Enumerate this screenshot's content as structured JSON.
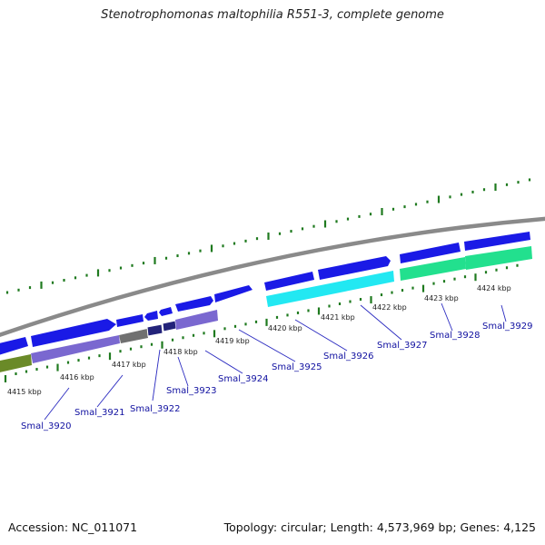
{
  "title": "Stenotrophomonas maltophilia R551-3, complete genome",
  "accession": "Accession: NC_011071",
  "topology": "Topology: circular; Length: 4,573,969 bp; Genes: 4,125",
  "colors": {
    "forward_cds": "#1a1ae6",
    "forward_cds_dark": "#000066",
    "reverse_cds": "#7a68d0",
    "reverse_cds_dark": "#23237a",
    "gray_feature": "#707070",
    "olive_feature": "#6a8a28",
    "cyan_feature": "#22e8f2",
    "teal_feature": "#22e08e",
    "backbone": "#8a8a8a",
    "tick": "#1f7a1f",
    "gene_label": "#1010a0",
    "leader_line": "#2a2ac0"
  },
  "scale_labels": [
    "4415 kbp",
    "4416 kbp",
    "4417 kbp",
    "4418 kbp",
    "4419 kbp",
    "4420 kbp",
    "4421 kbp",
    "4422 kbp",
    "4423 kbp",
    "4424 kbp"
  ],
  "gene_labels": [
    "Smal_3920",
    "Smal_3921",
    "Smal_3922",
    "Smal_3923",
    "Smal_3924",
    "Smal_3925",
    "Smal_3926",
    "Smal_3927",
    "Smal_3928",
    "Smal_3929"
  ]
}
